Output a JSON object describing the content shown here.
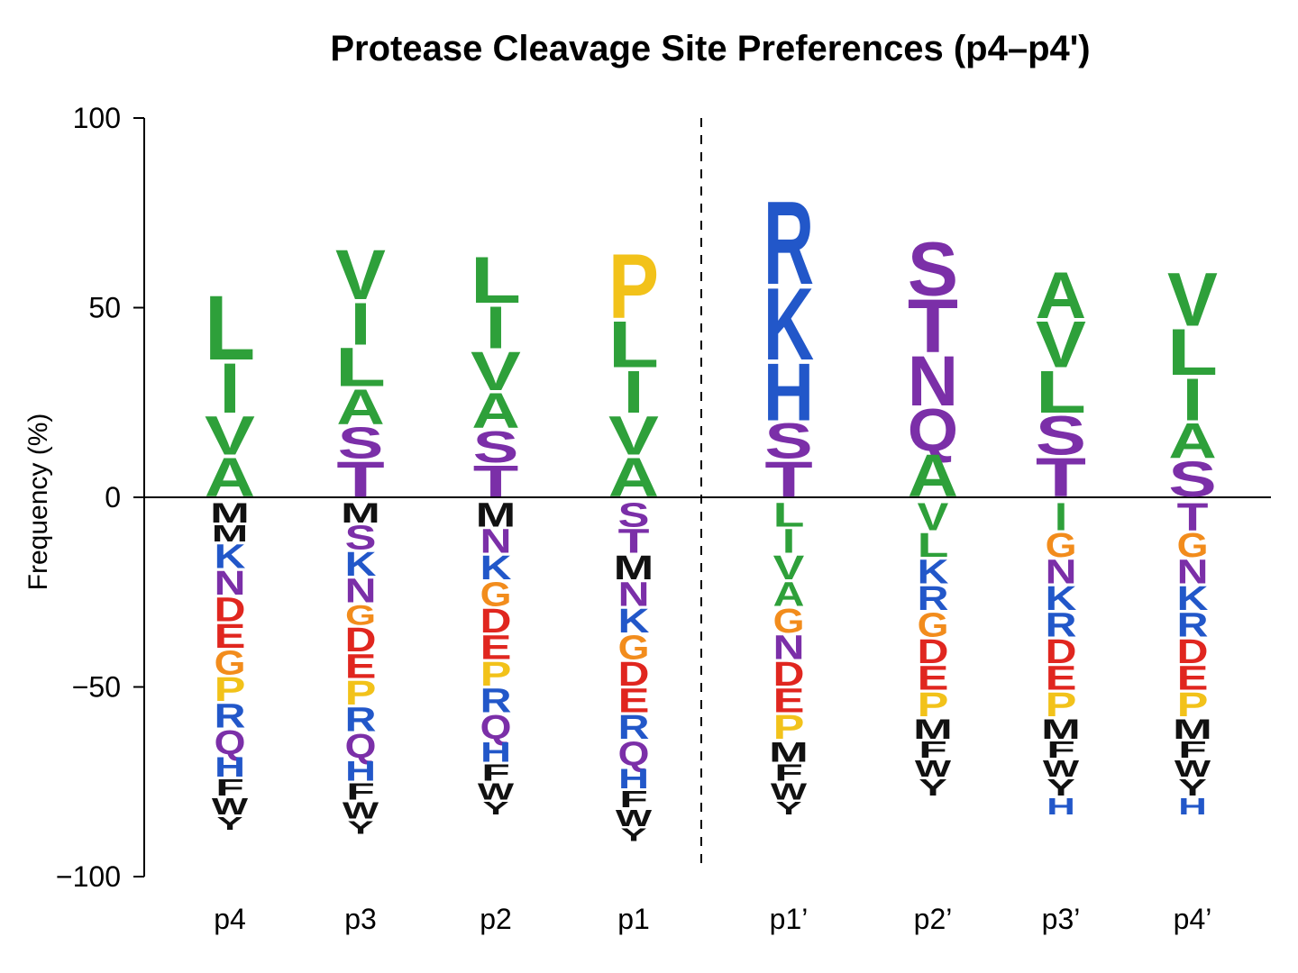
{
  "chart_data": {
    "type": "sequence-logo",
    "title": "Protease Cleavage Site Preferences (p4–p4')",
    "ylabel": "Frequency (%)",
    "xlabel": "",
    "ylim": [
      -100,
      100
    ],
    "yticks": [
      {
        "value": 100,
        "label": "100"
      },
      {
        "value": 50,
        "label": "50"
      },
      {
        "value": 0,
        "label": "0"
      },
      {
        "value": -50,
        "label": "−50"
      },
      {
        "value": -100,
        "label": "−100"
      }
    ],
    "divider_after_position": "p1",
    "colors": {
      "hydrophobic": "#2ea03a",
      "polar": "#7b2fa8",
      "basic": "#2257c9",
      "acidic": "#e0261f",
      "glycine": "#f28c1c",
      "proline": "#f2c21a",
      "aromatic_sulfur": "#111111"
    },
    "residue_colors": {
      "L": "#2ea03a",
      "I": "#2ea03a",
      "V": "#2ea03a",
      "A": "#2ea03a",
      "S": "#7b2fa8",
      "T": "#7b2fa8",
      "N": "#7b2fa8",
      "Q": "#7b2fa8",
      "K": "#2257c9",
      "R": "#2257c9",
      "H": "#2257c9",
      "D": "#e0261f",
      "E": "#e0261f",
      "G": "#f28c1c",
      "P": "#f2c21a",
      "M": "#111111",
      "F": "#111111",
      "W": "#111111",
      "Y": "#111111"
    },
    "positions": [
      {
        "label": "p4",
        "positive": [
          {
            "r": "L",
            "h": 18
          },
          {
            "r": "I",
            "h": 14
          },
          {
            "r": "V",
            "h": 11
          },
          {
            "r": "A",
            "h": 11
          }
        ],
        "negative": [
          {
            "r": "M",
            "h": 6
          },
          {
            "r": "M",
            "h": 5
          },
          {
            "r": "K",
            "h": 7
          },
          {
            "r": "N",
            "h": 7
          },
          {
            "r": "D",
            "h": 7
          },
          {
            "r": "E",
            "h": 7
          },
          {
            "r": "G",
            "h": 7
          },
          {
            "r": "P",
            "h": 7
          },
          {
            "r": "R",
            "h": 7
          },
          {
            "r": "Q",
            "h": 7
          },
          {
            "r": "H",
            "h": 6
          },
          {
            "r": "F",
            "h": 5
          },
          {
            "r": "W",
            "h": 5
          },
          {
            "r": "Y",
            "h": 4
          }
        ]
      },
      {
        "label": "p3",
        "positive": [
          {
            "r": "V",
            "h": 14
          },
          {
            "r": "I",
            "h": 12
          },
          {
            "r": "L",
            "h": 11
          },
          {
            "r": "A",
            "h": 10
          },
          {
            "r": "S",
            "h": 9
          },
          {
            "r": "T",
            "h": 10
          }
        ],
        "negative": [
          {
            "r": "M",
            "h": 6
          },
          {
            "r": "S",
            "h": 7
          },
          {
            "r": "K",
            "h": 7
          },
          {
            "r": "N",
            "h": 7
          },
          {
            "r": "G",
            "h": 6
          },
          {
            "r": "D",
            "h": 7
          },
          {
            "r": "E",
            "h": 7
          },
          {
            "r": "P",
            "h": 7
          },
          {
            "r": "R",
            "h": 7
          },
          {
            "r": "Q",
            "h": 7
          },
          {
            "r": "H",
            "h": 6
          },
          {
            "r": "F",
            "h": 5
          },
          {
            "r": "W",
            "h": 5
          },
          {
            "r": "Y",
            "h": 4
          }
        ]
      },
      {
        "label": "p2",
        "positive": [
          {
            "r": "L",
            "h": 13
          },
          {
            "r": "I",
            "h": 12
          },
          {
            "r": "V",
            "h": 11
          },
          {
            "r": "A",
            "h": 10
          },
          {
            "r": "S",
            "h": 9
          },
          {
            "r": "T",
            "h": 9
          }
        ],
        "negative": [
          {
            "r": "M",
            "h": 7
          },
          {
            "r": "N",
            "h": 7
          },
          {
            "r": "K",
            "h": 7
          },
          {
            "r": "G",
            "h": 7
          },
          {
            "r": "D",
            "h": 7
          },
          {
            "r": "E",
            "h": 7
          },
          {
            "r": "P",
            "h": 7
          },
          {
            "r": "R",
            "h": 7
          },
          {
            "r": "Q",
            "h": 7
          },
          {
            "r": "H",
            "h": 6
          },
          {
            "r": "F",
            "h": 5
          },
          {
            "r": "W",
            "h": 5
          },
          {
            "r": "Y",
            "h": 4
          }
        ]
      },
      {
        "label": "p1",
        "positive": [
          {
            "r": "P",
            "h": 18
          },
          {
            "r": "L",
            "h": 13
          },
          {
            "r": "I",
            "h": 12
          },
          {
            "r": "V",
            "h": 11
          },
          {
            "r": "A",
            "h": 11
          }
        ],
        "negative": [
          {
            "r": "S",
            "h": 7
          },
          {
            "r": "T",
            "h": 7
          },
          {
            "r": "M",
            "h": 7
          },
          {
            "r": "N",
            "h": 7
          },
          {
            "r": "K",
            "h": 7
          },
          {
            "r": "G",
            "h": 7
          },
          {
            "r": "D",
            "h": 7
          },
          {
            "r": "E",
            "h": 7
          },
          {
            "r": "R",
            "h": 7
          },
          {
            "r": "Q",
            "h": 7
          },
          {
            "r": "H",
            "h": 6
          },
          {
            "r": "F",
            "h": 5
          },
          {
            "r": "W",
            "h": 5
          },
          {
            "r": "Y",
            "h": 4
          }
        ]
      },
      {
        "label": "p1’",
        "positive": [
          {
            "r": "R",
            "h": 23
          },
          {
            "r": "K",
            "h": 20
          },
          {
            "r": "H",
            "h": 16
          },
          {
            "r": "S",
            "h": 10
          },
          {
            "r": "T",
            "h": 10
          }
        ],
        "negative": [
          {
            "r": "L",
            "h": 7
          },
          {
            "r": "I",
            "h": 7
          },
          {
            "r": "V",
            "h": 7
          },
          {
            "r": "A",
            "h": 7
          },
          {
            "r": "G",
            "h": 7
          },
          {
            "r": "N",
            "h": 7
          },
          {
            "r": "D",
            "h": 7
          },
          {
            "r": "E",
            "h": 7
          },
          {
            "r": "P",
            "h": 7
          },
          {
            "r": "M",
            "h": 6
          },
          {
            "r": "F",
            "h": 5
          },
          {
            "r": "W",
            "h": 5
          },
          {
            "r": "Y",
            "h": 4
          }
        ]
      },
      {
        "label": "p2’",
        "positive": [
          {
            "r": "S",
            "h": 15
          },
          {
            "r": "T",
            "h": 15
          },
          {
            "r": "N",
            "h": 14
          },
          {
            "r": "Q",
            "h": 12
          },
          {
            "r": "A",
            "h": 12
          }
        ],
        "negative": [
          {
            "r": "V",
            "h": 8
          },
          {
            "r": "L",
            "h": 7
          },
          {
            "r": "K",
            "h": 7
          },
          {
            "r": "R",
            "h": 7
          },
          {
            "r": "G",
            "h": 7
          },
          {
            "r": "D",
            "h": 7
          },
          {
            "r": "E",
            "h": 7
          },
          {
            "r": "P",
            "h": 7
          },
          {
            "r": "M",
            "h": 6
          },
          {
            "r": "F",
            "h": 5
          },
          {
            "r": "W",
            "h": 5
          },
          {
            "r": "Y",
            "h": 5
          }
        ]
      },
      {
        "label": "p3’",
        "positive": [
          {
            "r": "A",
            "h": 13
          },
          {
            "r": "V",
            "h": 13
          },
          {
            "r": "L",
            "h": 12
          },
          {
            "r": "S",
            "h": 11
          },
          {
            "r": "T",
            "h": 11
          }
        ],
        "negative": [
          {
            "r": "I",
            "h": 8
          },
          {
            "r": "G",
            "h": 7
          },
          {
            "r": "N",
            "h": 7
          },
          {
            "r": "K",
            "h": 7
          },
          {
            "r": "R",
            "h": 7
          },
          {
            "r": "D",
            "h": 7
          },
          {
            "r": "E",
            "h": 7
          },
          {
            "r": "P",
            "h": 7
          },
          {
            "r": "M",
            "h": 6
          },
          {
            "r": "F",
            "h": 5
          },
          {
            "r": "W",
            "h": 5
          },
          {
            "r": "Y",
            "h": 5
          },
          {
            "r": "H",
            "h": 5
          }
        ]
      },
      {
        "label": "p4’",
        "positive": [
          {
            "r": "V",
            "h": 15
          },
          {
            "r": "L",
            "h": 13
          },
          {
            "r": "I",
            "h": 12
          },
          {
            "r": "A",
            "h": 10
          },
          {
            "r": "S",
            "h": 10
          }
        ],
        "negative": [
          {
            "r": "T",
            "h": 8
          },
          {
            "r": "G",
            "h": 7
          },
          {
            "r": "N",
            "h": 7
          },
          {
            "r": "K",
            "h": 7
          },
          {
            "r": "R",
            "h": 7
          },
          {
            "r": "D",
            "h": 7
          },
          {
            "r": "E",
            "h": 7
          },
          {
            "r": "P",
            "h": 7
          },
          {
            "r": "M",
            "h": 6
          },
          {
            "r": "F",
            "h": 5
          },
          {
            "r": "W",
            "h": 5
          },
          {
            "r": "Y",
            "h": 5
          },
          {
            "r": "H",
            "h": 5
          }
        ]
      }
    ]
  }
}
